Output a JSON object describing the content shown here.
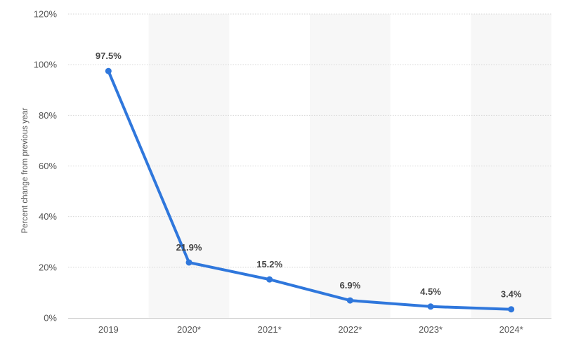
{
  "chart_data": {
    "type": "line",
    "title": "",
    "xlabel": "",
    "ylabel": "Percent change from previous year",
    "categories": [
      "2019",
      "2020*",
      "2021*",
      "2022*",
      "2023*",
      "2024*"
    ],
    "series": [
      {
        "values": [
          97.5,
          21.9,
          15.2,
          6.9,
          4.5,
          3.4
        ],
        "labels": [
          "97.5%",
          "21.9%",
          "15.2%",
          "6.9%",
          "4.5%",
          "3.4%"
        ]
      }
    ],
    "ylim": [
      0,
      120
    ],
    "yticks": [
      0,
      20,
      40,
      60,
      80,
      100,
      120
    ],
    "ytick_labels": [
      "0%",
      "20%",
      "40%",
      "60%",
      "80%",
      "100%",
      "120%"
    ],
    "grid": true,
    "legend": "none",
    "colors": {
      "line": "#2f77dc",
      "band": "#f7f7f7",
      "grid": "#d6d6d6",
      "axis": "#cccccc"
    }
  }
}
